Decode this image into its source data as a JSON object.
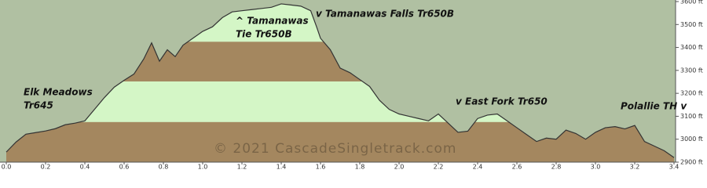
{
  "chart_data": {
    "type": "area",
    "x": [
      0,
      0.05,
      0.1,
      0.15,
      0.2,
      0.25,
      0.3,
      0.35,
      0.4,
      0.45,
      0.5,
      0.55,
      0.6,
      0.65,
      0.7,
      0.74,
      0.78,
      0.82,
      0.86,
      0.9,
      0.95,
      1.0,
      1.05,
      1.1,
      1.15,
      1.2,
      1.25,
      1.3,
      1.35,
      1.4,
      1.45,
      1.5,
      1.55,
      1.58,
      1.6,
      1.65,
      1.7,
      1.75,
      1.8,
      1.85,
      1.9,
      1.95,
      2.0,
      2.05,
      2.1,
      2.15,
      2.2,
      2.25,
      2.3,
      2.35,
      2.4,
      2.45,
      2.5,
      2.55,
      2.6,
      2.65,
      2.7,
      2.75,
      2.8,
      2.85,
      2.9,
      2.95,
      3.0,
      3.05,
      3.1,
      3.15,
      3.2,
      3.25,
      3.3,
      3.35,
      3.4
    ],
    "values": [
      2944,
      2988,
      3022,
      3029,
      3036,
      3046,
      3063,
      3070,
      3080,
      3131,
      3182,
      3227,
      3257,
      3284,
      3350,
      3420,
      3340,
      3390,
      3360,
      3410,
      3440,
      3470,
      3490,
      3530,
      3555,
      3560,
      3565,
      3570,
      3575,
      3590,
      3585,
      3580,
      3560,
      3490,
      3440,
      3390,
      3310,
      3290,
      3260,
      3230,
      3170,
      3130,
      3110,
      3100,
      3090,
      3080,
      3110,
      3070,
      3030,
      3035,
      3090,
      3105,
      3110,
      3080,
      3050,
      3020,
      2990,
      3005,
      3000,
      3040,
      3025,
      3000,
      3030,
      3050,
      3055,
      3045,
      3060,
      2990,
      2970,
      2950,
      2920
    ],
    "color": "#333333",
    "band_edges": [
      3075,
      3252,
      3425
    ],
    "band_colors": [
      "#a4875f",
      "#d4f6c6",
      "#a4875f",
      "#d4f6c6"
    ],
    "background": "#b0c0a2",
    "xlim": [
      0,
      3.4
    ],
    "xticks": [
      {
        "value": 0,
        "label": "0.0"
      },
      0.2,
      0.4,
      0.6,
      0.8,
      {
        "value": 1,
        "label": "1.0"
      },
      1.2,
      1.4,
      1.6,
      1.8,
      {
        "value": 2,
        "label": "2.0"
      },
      2.2,
      2.4,
      2.6,
      2.8,
      {
        "value": 3,
        "label": "3.0"
      },
      3.2,
      3.4
    ],
    "ylim": [
      2900,
      3600
    ],
    "yticks": [
      {
        "value": 2900,
        "label": "2900 ft"
      },
      {
        "value": 3000,
        "label": "3000 ft"
      },
      {
        "value": 3100,
        "label": "3100 ft"
      },
      {
        "value": 3200,
        "label": "3200 ft"
      },
      {
        "value": 3300,
        "label": "3300 ft"
      },
      {
        "value": 3400,
        "label": "3400 ft"
      },
      {
        "value": 3500,
        "label": "3500 ft"
      },
      {
        "value": 3600,
        "label": "3600 ft"
      }
    ],
    "annotations": [
      "Elk Meadows",
      "Tr645",
      "^ Tamanawas",
      "Tie Tr650B",
      "v Tamanawas Falls Tr650B",
      "v East Fork Tr650",
      "Polallie TH v",
      "© 2021 CascadeSingletrack.com"
    ]
  }
}
